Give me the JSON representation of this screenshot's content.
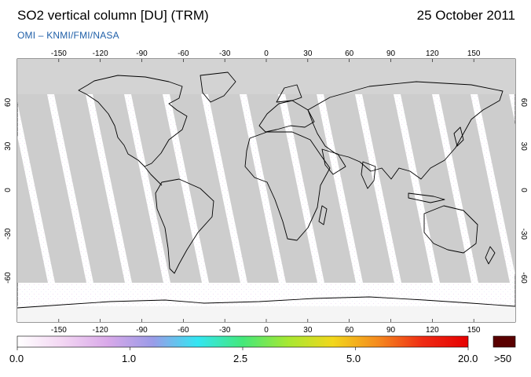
{
  "header": {
    "title": "SO2 vertical column [DU] (TRM)",
    "date": "25 October 2011",
    "subtitle": "OMI  –  KNMI/FMI/NASA"
  },
  "map": {
    "projection": "equirectangular",
    "lon_ticks": [
      "-150",
      "-120",
      "-90",
      "-60",
      "-30",
      "0",
      "30",
      "60",
      "90",
      "120",
      "150"
    ],
    "lat_ticks": [
      "60",
      "30",
      "0",
      "-30",
      "-60"
    ],
    "colors": {
      "land_swath": "#a9a9a9",
      "ocean_swath": "#cdcdcd",
      "no_data": "#d3d3d3",
      "coastline": "#000000"
    }
  },
  "colorbar": {
    "labels": [
      "0.0",
      "1.0",
      "2.5",
      "5.0",
      "20.0"
    ],
    "overflow_label": ">50",
    "overflow_color": "#5a0000",
    "gradient": [
      "#ffffff",
      "#f3d6f3",
      "#d9a9e9",
      "#9b9be8",
      "#33e6f2",
      "#44e87a",
      "#a6e832",
      "#f2d71c",
      "#f58a1e",
      "#ef2b14",
      "#e60000"
    ]
  }
}
